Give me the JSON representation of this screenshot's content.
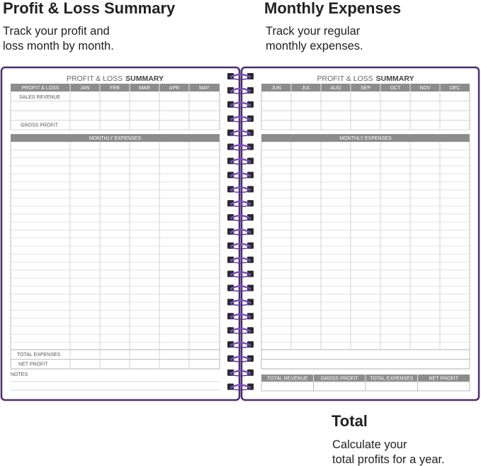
{
  "callouts": [
    {
      "title": "Profit & Loss Summary",
      "lines": [
        "Track your profit and",
        "loss month by month."
      ]
    },
    {
      "title": "Monthly Expenses",
      "lines": [
        "Track your regular",
        "monthly expenses."
      ]
    },
    {
      "title": "Total",
      "lines": [
        "Calculate your",
        "total profits for a year."
      ]
    }
  ],
  "left_page": {
    "title": "PROFIT & LOSS",
    "title_bold": "SUMMARY",
    "header": [
      "PROFIT & LOSS",
      "JAN",
      "FEB",
      "MAR",
      "APR",
      "MAY"
    ],
    "summary_rows": [
      "SALES REVENUE",
      "GROSS PROFIT"
    ],
    "section": "MONTHLY EXPENSES",
    "total_rows": [
      "TOTAL EXPENSES",
      "NET PROFIT"
    ],
    "notes": "NOTES"
  },
  "right_page": {
    "title": "PROFIT & LOSS",
    "title_bold": "SUMMARY",
    "header": [
      "JUN",
      "JUL",
      "AUG",
      "SEP",
      "OCT",
      "NOV",
      "DEC"
    ],
    "section": "MONTHLY EXPENSES",
    "footer_header": [
      "TOTAL REVENUE",
      "GROSS PROFIT",
      "TOTAL EXPENSES",
      "NET PROFIT"
    ]
  }
}
